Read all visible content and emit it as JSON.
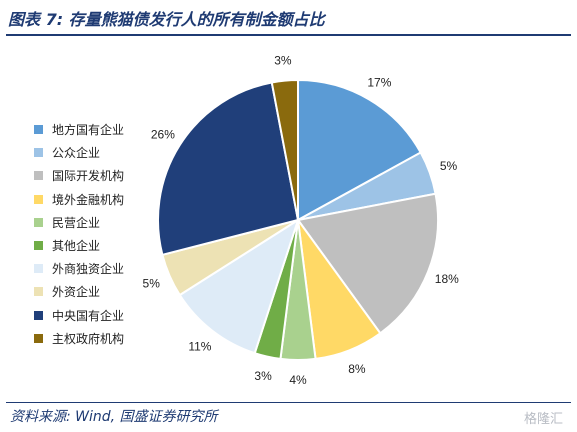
{
  "title": "图表 7: 存量熊猫债发行人的所有制金额占比",
  "source": "资料来源: Wind, 国盛证券研究所",
  "watermark": "格隆汇",
  "chart_data": {
    "type": "pie",
    "title": "",
    "legend_position": "left",
    "start_angle_deg": 0,
    "direction": "clockwise",
    "slices": [
      {
        "name": "地方国有企业",
        "value": 17,
        "label": "17%",
        "color": "#5b9bd5"
      },
      {
        "name": "公众企业",
        "value": 5,
        "label": "5%",
        "color": "#9dc3e6"
      },
      {
        "name": "国际开发机构",
        "value": 18,
        "label": "18%",
        "color": "#bfbfbf"
      },
      {
        "name": "境外金融机构",
        "value": 8,
        "label": "8%",
        "color": "#ffd966"
      },
      {
        "name": "民营企业",
        "value": 4,
        "label": "4%",
        "color": "#a9d18e"
      },
      {
        "name": "其他企业",
        "value": 3,
        "label": "3%",
        "color": "#70ad47"
      },
      {
        "name": "外商独资企业",
        "value": 11,
        "label": "11%",
        "color": "#deebf7"
      },
      {
        "name": "外资企业",
        "value": 5,
        "label": "5%",
        "color": "#ede2b4"
      },
      {
        "name": "中央国有企业",
        "value": 26,
        "label": "26%",
        "color": "#203f7a"
      },
      {
        "name": "主权政府机构",
        "value": 3,
        "label": "3%",
        "color": "#8a6a0d"
      }
    ]
  }
}
